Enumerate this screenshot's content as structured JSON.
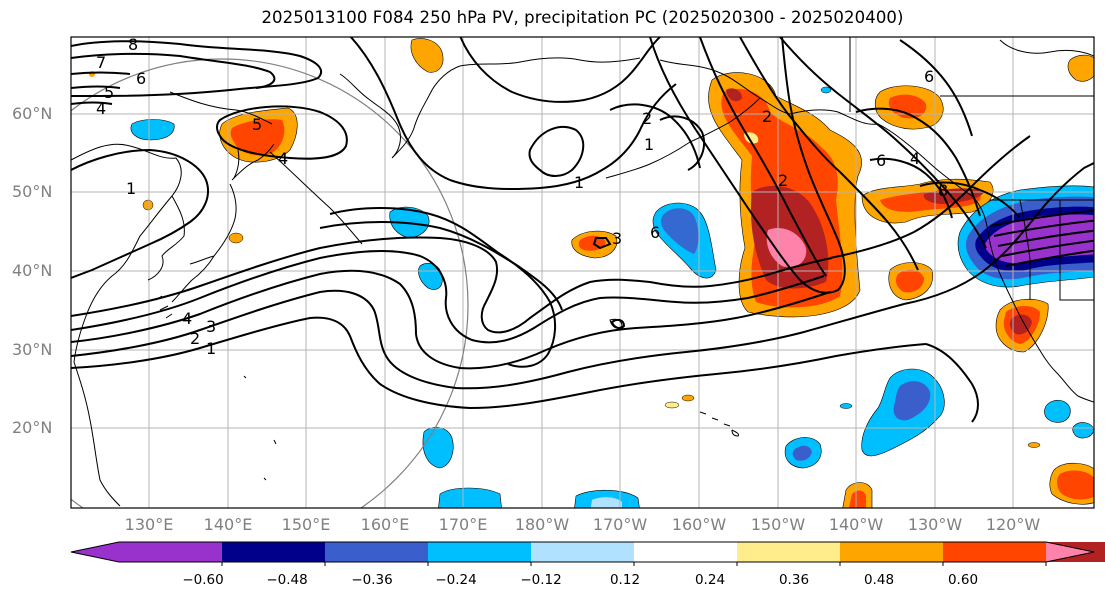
{
  "title": "2025013100 F084 250 hPa PV, precipitation PC (2025020300 - 2025020400)",
  "lat_labels": [
    "60°N",
    "50°N",
    "40°N",
    "30°N",
    "20°N"
  ],
  "lon_labels": [
    "130°E",
    "140°E",
    "150°E",
    "160°E",
    "170°E",
    "180°W",
    "170°W",
    "160°W",
    "150°W",
    "140°W",
    "130°W",
    "120°W"
  ],
  "colorbar": {
    "ticks": [
      "−0.60",
      "−0.48",
      "−0.36",
      "−0.24",
      "−0.12",
      "0.12",
      "0.24",
      "0.36",
      "0.48",
      "0.60"
    ],
    "colors": [
      "#9932cc",
      "#00008b",
      "#3a5fcd",
      "#00bfff",
      "#b0e2ff",
      "#ffffff",
      "#ffec8b",
      "#ffa500",
      "#ff4500",
      "#b22222",
      "#ff82ab"
    ]
  },
  "contour_labels": [
    "8",
    "7",
    "6",
    "5",
    "4",
    "5",
    "4",
    "1",
    "1",
    "2",
    "3",
    "4",
    "3",
    "2",
    "1",
    "1",
    "2",
    "6",
    "2",
    "6",
    "4",
    "8",
    "6"
  ],
  "colors": {
    "contour": "#000000",
    "coast": "#000000",
    "grid": "#b4b4b4",
    "circle": "#808080"
  }
}
